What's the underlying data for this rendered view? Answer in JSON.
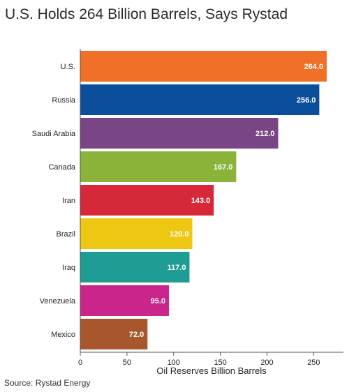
{
  "chart_data": {
    "type": "bar",
    "orientation": "horizontal",
    "title": "U.S. Holds 264 Billion Barrels, Says Rystad",
    "xlabel": "Oil Reserves Billion Barrels",
    "ylabel": "",
    "source": "Source: Rystad Energy",
    "xlim": [
      0,
      280
    ],
    "xticks": [
      0,
      50,
      100,
      150,
      200,
      250
    ],
    "grid": false,
    "categories": [
      "U.S.",
      "Russia",
      "Saudi Arabia",
      "Canada",
      "Iran",
      "Brazil",
      "Iraq",
      "Venezuela",
      "Mexico"
    ],
    "values": [
      264.0,
      256.0,
      212.0,
      167.0,
      143.0,
      120.0,
      117.0,
      95.0,
      72.0
    ],
    "value_labels": [
      "264.0",
      "256.0",
      "212.0",
      "167.0",
      "143.0",
      "120.0",
      "117.0",
      "95.0",
      "72.0"
    ],
    "colors": [
      "#f07028",
      "#0b4f9c",
      "#7a4584",
      "#8bb33a",
      "#d62839",
      "#eec712",
      "#1f9c93",
      "#c9258a",
      "#a8572d"
    ]
  }
}
